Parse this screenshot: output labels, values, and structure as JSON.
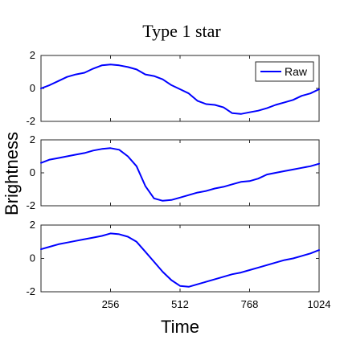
{
  "chart_data": {
    "type": "line",
    "title": "Type 1 star",
    "xlabel": "Time",
    "ylabel": "Brightness",
    "xlim": [
      0,
      1024
    ],
    "ylim": [
      -2,
      2
    ],
    "xticks": [
      256,
      512,
      768,
      1024
    ],
    "xtick_labels": [
      "256",
      "512",
      "768",
      "1024"
    ],
    "yticks": [
      -2,
      0,
      2
    ],
    "ytick_labels": [
      "-2",
      "0",
      "2"
    ],
    "grid": false,
    "line_color": "#0000ff",
    "legend": {
      "entries": [
        "Raw"
      ],
      "placement": "top-right",
      "panel": 0
    },
    "panels": [
      {
        "series": [
          {
            "name": "Raw",
            "x": [
              0,
              32,
              64,
              96,
              128,
              160,
              192,
              224,
              256,
              288,
              320,
              352,
              384,
              416,
              448,
              480,
              512,
              544,
              576,
              608,
              640,
              672,
              704,
              736,
              768,
              800,
              832,
              864,
              896,
              928,
              960,
              992,
              1024
            ],
            "y": [
              0.0,
              0.2,
              0.45,
              0.7,
              0.85,
              0.95,
              1.2,
              1.4,
              1.45,
              1.4,
              1.3,
              1.15,
              0.85,
              0.75,
              0.55,
              0.2,
              -0.05,
              -0.3,
              -0.75,
              -0.95,
              -1.0,
              -1.15,
              -1.5,
              -1.55,
              -1.45,
              -1.35,
              -1.2,
              -1.0,
              -0.85,
              -0.7,
              -0.45,
              -0.3,
              -0.05
            ]
          }
        ]
      },
      {
        "series": [
          {
            "name": "",
            "x": [
              0,
              32,
              64,
              96,
              128,
              160,
              192,
              224,
              256,
              288,
              320,
              352,
              384,
              416,
              448,
              480,
              512,
              544,
              576,
              608,
              640,
              672,
              704,
              736,
              768,
              800,
              832,
              864,
              896,
              928,
              960,
              992,
              1024
            ],
            "y": [
              0.6,
              0.8,
              0.9,
              1.0,
              1.1,
              1.2,
              1.35,
              1.45,
              1.5,
              1.4,
              1.0,
              0.4,
              -0.8,
              -1.55,
              -1.7,
              -1.65,
              -1.5,
              -1.35,
              -1.2,
              -1.1,
              -0.95,
              -0.85,
              -0.7,
              -0.55,
              -0.5,
              -0.35,
              -0.1,
              0.0,
              0.1,
              0.2,
              0.3,
              0.4,
              0.55
            ]
          }
        ]
      },
      {
        "series": [
          {
            "name": "",
            "x": [
              0,
              32,
              64,
              96,
              128,
              160,
              192,
              224,
              256,
              288,
              320,
              352,
              384,
              416,
              448,
              480,
              512,
              544,
              576,
              608,
              640,
              672,
              704,
              736,
              768,
              800,
              832,
              864,
              896,
              928,
              960,
              992,
              1024
            ],
            "y": [
              0.55,
              0.7,
              0.85,
              0.95,
              1.05,
              1.15,
              1.25,
              1.35,
              1.5,
              1.45,
              1.3,
              1.0,
              0.4,
              -0.2,
              -0.8,
              -1.3,
              -1.65,
              -1.7,
              -1.55,
              -1.4,
              -1.25,
              -1.1,
              -0.95,
              -0.85,
              -0.7,
              -0.55,
              -0.4,
              -0.25,
              -0.1,
              0.0,
              0.15,
              0.3,
              0.5
            ]
          }
        ]
      }
    ]
  }
}
